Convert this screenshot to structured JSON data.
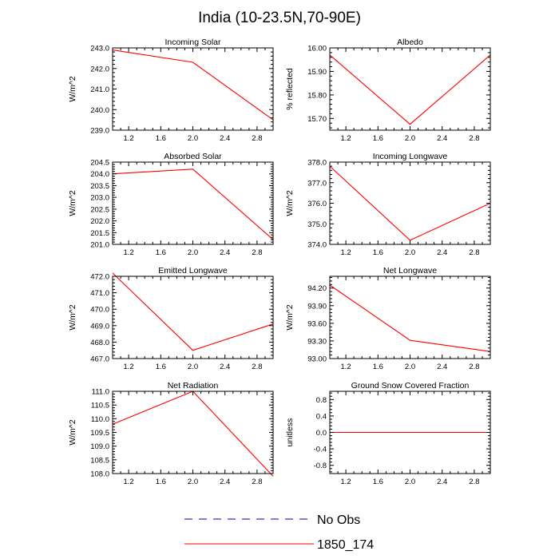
{
  "figure": {
    "title": "India (10-23.5N,70-90E)",
    "line_color": "#ff0000",
    "obs_color": "#0000aa",
    "axis_color": "#000000"
  },
  "legend": {
    "entries": [
      {
        "label": "No Obs",
        "style": "dashed"
      },
      {
        "label": "1850_174",
        "style": "solid"
      }
    ]
  },
  "chart_data": [
    {
      "type": "line",
      "title": "Incoming Solar",
      "ylabel": "W/m^2",
      "x": [
        1.0,
        2.0,
        3.0
      ],
      "y": [
        242.9,
        242.3,
        239.5
      ],
      "xlim": [
        1.0,
        3.0
      ],
      "ylim": [
        239.0,
        243.0
      ],
      "xticks": [
        1.2,
        1.6,
        2.0,
        2.4,
        2.8
      ],
      "xtick_labels": [
        "1.2",
        "1.6",
        "2.0",
        "2.4",
        "2.8"
      ],
      "yticks": [
        239.0,
        240.0,
        241.0,
        242.0,
        243.0
      ],
      "ytick_labels": [
        "239.0",
        "240.0",
        "241.0",
        "242.0",
        "243.0"
      ],
      "series": [
        {
          "name": "1850_174",
          "values": [
            242.9,
            242.3,
            239.5
          ]
        }
      ]
    },
    {
      "type": "line",
      "title": "Albedo",
      "ylabel": "% reflected",
      "x": [
        1.0,
        2.0,
        3.0
      ],
      "y": [
        15.97,
        15.675,
        15.97
      ],
      "xlim": [
        1.0,
        3.0
      ],
      "ylim": [
        15.65,
        16.0
      ],
      "xticks": [
        1.2,
        1.6,
        2.0,
        2.4,
        2.8
      ],
      "xtick_labels": [
        "1.2",
        "1.6",
        "2.0",
        "2.4",
        "2.8"
      ],
      "yticks": [
        15.7,
        15.8,
        15.9,
        16.0
      ],
      "ytick_labels": [
        "15.70",
        "15.80",
        "15.90",
        "16.00"
      ],
      "series": [
        {
          "name": "1850_174",
          "values": [
            15.97,
            15.675,
            15.97
          ]
        }
      ]
    },
    {
      "type": "line",
      "title": "Absorbed Solar",
      "ylabel": "W/m^2",
      "x": [
        1.0,
        2.0,
        3.0
      ],
      "y": [
        204.0,
        204.2,
        201.2
      ],
      "xlim": [
        1.0,
        3.0
      ],
      "ylim": [
        201.0,
        204.5
      ],
      "xticks": [
        1.2,
        1.6,
        2.0,
        2.4,
        2.8
      ],
      "xtick_labels": [
        "1.2",
        "1.6",
        "2.0",
        "2.4",
        "2.8"
      ],
      "yticks": [
        201.0,
        201.5,
        202.0,
        202.5,
        203.0,
        203.5,
        204.0,
        204.5
      ],
      "ytick_labels": [
        "201.0",
        "201.5",
        "202.0",
        "202.5",
        "203.0",
        "203.5",
        "204.0",
        "204.5"
      ],
      "series": [
        {
          "name": "1850_174",
          "values": [
            204.0,
            204.2,
            201.2
          ]
        }
      ]
    },
    {
      "type": "line",
      "title": "Incoming Longwave",
      "ylabel": "W/m^2",
      "x": [
        1.0,
        2.0,
        3.0
      ],
      "y": [
        377.8,
        374.2,
        376.0
      ],
      "xlim": [
        1.0,
        3.0
      ],
      "ylim": [
        374.0,
        378.0
      ],
      "xticks": [
        1.2,
        1.6,
        2.0,
        2.4,
        2.8
      ],
      "xtick_labels": [
        "1.2",
        "1.6",
        "2.0",
        "2.4",
        "2.8"
      ],
      "yticks": [
        374.0,
        375.0,
        376.0,
        377.0,
        378.0
      ],
      "ytick_labels": [
        "374.0",
        "375.0",
        "376.0",
        "377.0",
        "378.0"
      ],
      "series": [
        {
          "name": "1850_174",
          "values": [
            377.8,
            374.2,
            376.0
          ]
        }
      ]
    },
    {
      "type": "line",
      "title": "Emitted Longwave",
      "ylabel": "W/m^2",
      "x": [
        1.0,
        2.0,
        3.0
      ],
      "y": [
        472.2,
        467.5,
        469.1
      ],
      "xlim": [
        1.0,
        3.0
      ],
      "ylim": [
        467.0,
        472.0
      ],
      "xticks": [
        1.2,
        1.6,
        2.0,
        2.4,
        2.8
      ],
      "xtick_labels": [
        "1.2",
        "1.6",
        "2.0",
        "2.4",
        "2.8"
      ],
      "yticks": [
        467.0,
        468.0,
        469.0,
        470.0,
        471.0,
        472.0
      ],
      "ytick_labels": [
        "467.0",
        "468.0",
        "469.0",
        "470.0",
        "471.0",
        "472.0"
      ],
      "series": [
        {
          "name": "1850_174",
          "values": [
            472.2,
            467.5,
            469.1
          ]
        }
      ]
    },
    {
      "type": "line",
      "title": "Net Longwave",
      "ylabel": "W/m^2",
      "x": [
        1.0,
        2.0,
        3.0
      ],
      "y": [
        94.25,
        93.31,
        93.12
      ],
      "xlim": [
        1.0,
        3.0
      ],
      "ylim": [
        93.0,
        94.4
      ],
      "xticks": [
        1.2,
        1.6,
        2.0,
        2.4,
        2.8
      ],
      "xtick_labels": [
        "1.2",
        "1.6",
        "2.0",
        "2.4",
        "2.8"
      ],
      "yticks": [
        93.0,
        93.3,
        93.6,
        93.9,
        94.2
      ],
      "ytick_labels": [
        "93.00",
        "93.30",
        "93.60",
        "93.90",
        "94.20"
      ],
      "series": [
        {
          "name": "1850_174",
          "values": [
            94.25,
            93.31,
            93.12
          ]
        }
      ]
    },
    {
      "type": "line",
      "title": "Net Radiation",
      "ylabel": "W/m^2",
      "x": [
        1.0,
        2.0,
        3.0
      ],
      "y": [
        109.8,
        111.0,
        107.9
      ],
      "xlim": [
        1.0,
        3.0
      ],
      "ylim": [
        108.0,
        111.0
      ],
      "xticks": [
        1.2,
        1.6,
        2.0,
        2.4,
        2.8
      ],
      "xtick_labels": [
        "1.2",
        "1.6",
        "2.0",
        "2.4",
        "2.8"
      ],
      "yticks": [
        108.0,
        108.5,
        109.0,
        109.5,
        110.0,
        110.5,
        111.0
      ],
      "ytick_labels": [
        "108.0",
        "108.5",
        "109.0",
        "109.5",
        "110.0",
        "110.5",
        "111.0"
      ],
      "series": [
        {
          "name": "1850_174",
          "values": [
            109.8,
            111.0,
            107.9
          ]
        }
      ]
    },
    {
      "type": "line",
      "title": "Ground Snow Covered Fraction",
      "ylabel": "unitless",
      "x": [
        1.0,
        2.0,
        3.0
      ],
      "y": [
        0.0,
        0.0,
        0.0
      ],
      "xlim": [
        1.0,
        3.0
      ],
      "ylim": [
        -1.0,
        1.0
      ],
      "xticks": [
        1.2,
        1.6,
        2.0,
        2.4,
        2.8
      ],
      "xtick_labels": [
        "1.2",
        "1.6",
        "2.0",
        "2.4",
        "2.8"
      ],
      "yticks": [
        -0.8,
        -0.4,
        0.0,
        0.4,
        0.8
      ],
      "ytick_labels": [
        "-0.8",
        "-0.4",
        "0.0",
        "0.4",
        "0.8"
      ],
      "series": [
        {
          "name": "1850_174",
          "values": [
            0.0,
            0.0,
            0.0
          ]
        }
      ]
    }
  ]
}
